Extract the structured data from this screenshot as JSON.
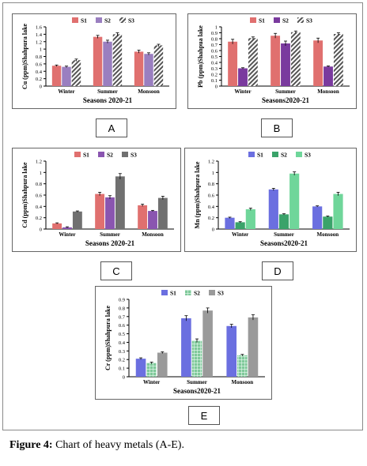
{
  "caption": {
    "prefix": "Figure 4:",
    "text": " Chart of heavy metals (A-E)."
  },
  "chart_data": [
    {
      "id": "A",
      "panel_label": "A",
      "type": "bar",
      "categories": [
        "Winter",
        "Summer",
        "Monsoon"
      ],
      "ylabel": "Cu (ppm)Shahpura lake",
      "xlabel": "Seasons 2020-21",
      "ylim": [
        0,
        1.6
      ],
      "yticks": [
        0,
        0.2,
        0.4,
        0.6,
        0.8,
        1,
        1.2,
        1.4,
        1.6
      ],
      "legend_position": "top-center",
      "series": [
        {
          "name": "S1",
          "color": "#e0706f",
          "pattern": "solid",
          "values": [
            0.55,
            1.33,
            0.93
          ],
          "errors": [
            0.02,
            0.04,
            0.04
          ]
        },
        {
          "name": "S2",
          "color": "#9a7fc0",
          "pattern": "solid",
          "values": [
            0.52,
            1.2,
            0.87
          ],
          "errors": [
            0.02,
            0.04,
            0.03
          ]
        },
        {
          "name": "S3",
          "color": "#9a9a9a",
          "pattern": "hatch",
          "values": [
            0.7,
            1.4,
            1.1
          ],
          "errors": [
            0.03,
            0.04,
            0.03
          ]
        }
      ]
    },
    {
      "id": "B",
      "panel_label": "B",
      "type": "bar",
      "categories": [
        "Winter",
        "Summer",
        "Monsoon"
      ],
      "ylabel": "Pb (ppm)Shahpua lake",
      "xlabel": "Seasons2020-21",
      "ylim": [
        0,
        1
      ],
      "yticks": [
        0,
        0.1,
        0.2,
        0.3,
        0.4,
        0.5,
        0.6,
        0.7,
        0.8,
        0.9,
        1
      ],
      "legend_position": "top-center",
      "series": [
        {
          "name": "S1",
          "color": "#e0706f",
          "pattern": "solid",
          "values": [
            0.75,
            0.85,
            0.77
          ],
          "errors": [
            0.04,
            0.04,
            0.04
          ]
        },
        {
          "name": "S2",
          "color": "#7a3a9e",
          "pattern": "solid",
          "values": [
            0.3,
            0.72,
            0.33
          ],
          "errors": [
            0.01,
            0.04,
            0.01
          ]
        },
        {
          "name": "S3",
          "color": "#9a9a9a",
          "pattern": "hatch",
          "values": [
            0.81,
            0.91,
            0.88
          ],
          "errors": [
            0.02,
            0.02,
            0.02
          ]
        }
      ]
    },
    {
      "id": "C",
      "panel_label": "C",
      "type": "bar",
      "categories": [
        "Winter",
        "Summer",
        "Monsoon"
      ],
      "ylabel": "Cd (ppm)Shahpura lake",
      "xlabel": "Seasons 2020-21",
      "ylim": [
        0,
        1.2
      ],
      "yticks": [
        0,
        0.2,
        0.4,
        0.6,
        0.8,
        1,
        1.2
      ],
      "legend_position": "top-center",
      "series": [
        {
          "name": "S1",
          "color": "#e0706f",
          "pattern": "solid",
          "values": [
            0.1,
            0.62,
            0.42
          ],
          "errors": [
            0.01,
            0.03,
            0.02
          ]
        },
        {
          "name": "S2",
          "color": "#8a55b0",
          "pattern": "solid",
          "values": [
            0.03,
            0.56,
            0.32
          ],
          "errors": [
            0.01,
            0.03,
            0.01
          ]
        },
        {
          "name": "S3",
          "color": "#707070",
          "pattern": "solid",
          "values": [
            0.31,
            0.93,
            0.55
          ],
          "errors": [
            0.01,
            0.05,
            0.03
          ]
        }
      ]
    },
    {
      "id": "D",
      "panel_label": "D",
      "type": "bar",
      "categories": [
        "Winter",
        "Summer",
        "Monsoon"
      ],
      "ylabel": "Mn (ppm)Shahpura lake",
      "xlabel": "Seasons2020-21",
      "ylim": [
        0,
        1.2
      ],
      "yticks": [
        0,
        0.2,
        0.4,
        0.6,
        0.8,
        1,
        1.2
      ],
      "legend_position": "top-center",
      "series": [
        {
          "name": "S1",
          "color": "#6b6fe0",
          "pattern": "solid",
          "values": [
            0.2,
            0.7,
            0.4
          ],
          "errors": [
            0.01,
            0.02,
            0.01
          ]
        },
        {
          "name": "S2",
          "color": "#3aa36a",
          "pattern": "solid",
          "values": [
            0.12,
            0.26,
            0.22
          ],
          "errors": [
            0.01,
            0.01,
            0.01
          ]
        },
        {
          "name": "S3",
          "color": "#6fd69a",
          "pattern": "solid",
          "values": [
            0.35,
            0.98,
            0.62
          ],
          "errors": [
            0.02,
            0.03,
            0.03
          ]
        }
      ]
    },
    {
      "id": "E",
      "panel_label": "E",
      "type": "bar",
      "categories": [
        "Winter",
        "Summer",
        "Monsoon"
      ],
      "ylabel": "Cr (ppm)Shahpura lake",
      "xlabel": "Seasons2020-21",
      "ylim": [
        0,
        0.9
      ],
      "yticks": [
        0,
        0.1,
        0.2,
        0.3,
        0.4,
        0.5,
        0.6,
        0.7,
        0.8,
        0.9
      ],
      "legend_position": "top-center",
      "series": [
        {
          "name": "S1",
          "color": "#6b6fe0",
          "pattern": "solid",
          "values": [
            0.21,
            0.68,
            0.59
          ],
          "errors": [
            0.01,
            0.03,
            0.02
          ]
        },
        {
          "name": "S2",
          "color": "#7fc99a",
          "pattern": "grid",
          "values": [
            0.16,
            0.42,
            0.25
          ],
          "errors": [
            0.01,
            0.02,
            0.01
          ]
        },
        {
          "name": "S3",
          "color": "#9a9a9a",
          "pattern": "solid",
          "values": [
            0.28,
            0.77,
            0.69
          ],
          "errors": [
            0.01,
            0.03,
            0.03
          ]
        }
      ]
    }
  ]
}
